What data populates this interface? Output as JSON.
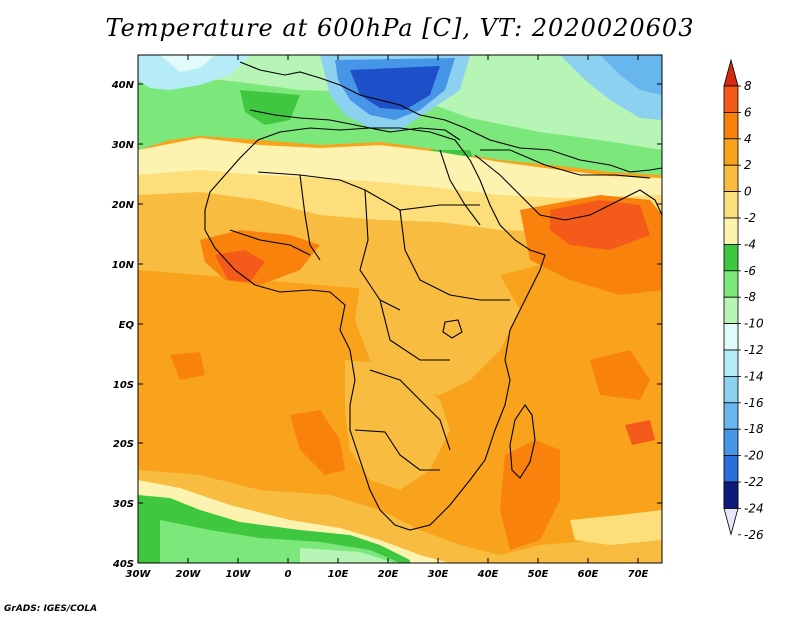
{
  "title": "Temperature at 600hPa [C], VT: 2020020603",
  "credit": "GrADS: IGES/COLA",
  "lat_labels": [
    "40N",
    "30N",
    "20N",
    "10N",
    "EQ",
    "10S",
    "20S",
    "30S",
    "40S"
  ],
  "lon_labels": [
    "30W",
    "20W",
    "10W",
    "0",
    "10E",
    "20E",
    "30E",
    "40E",
    "50E",
    "60E",
    "70E"
  ],
  "colorbar": {
    "labels": [
      "8",
      "6",
      "4",
      "2",
      "0",
      "-2",
      "-4",
      "-6",
      "-8",
      "-10",
      "-12",
      "-14",
      "-16",
      "-18",
      "-20",
      "-22",
      "-24",
      "-26"
    ],
    "colors": [
      "#d62a10",
      "#f45a1a",
      "#f8820c",
      "#f9a21c",
      "#f8bd40",
      "#fcde7a",
      "#fdf3b0",
      "#3fc83f",
      "#7ce87c",
      "#b6f5b6",
      "#e0fbfa",
      "#b5ecf7",
      "#8dd1f1",
      "#67b6ed",
      "#4695e6",
      "#2d6fd9",
      "#1a3ea8",
      "#101a7a"
    ]
  },
  "palette": {
    "deep_blue": "#1d50c8",
    "blue": "#4695e6",
    "light_blue": "#8dd1f1",
    "pale_cyan": "#e0fbfa",
    "light_green": "#b6f5b6",
    "green": "#7ce87c",
    "dark_green": "#3fc83f",
    "pale_yellow": "#fdf3b0",
    "yellow": "#fcde7a",
    "light_orange": "#f8bd40",
    "orange": "#f9a21c",
    "dark_orange": "#f8820c",
    "red_orange": "#f45a1a"
  }
}
